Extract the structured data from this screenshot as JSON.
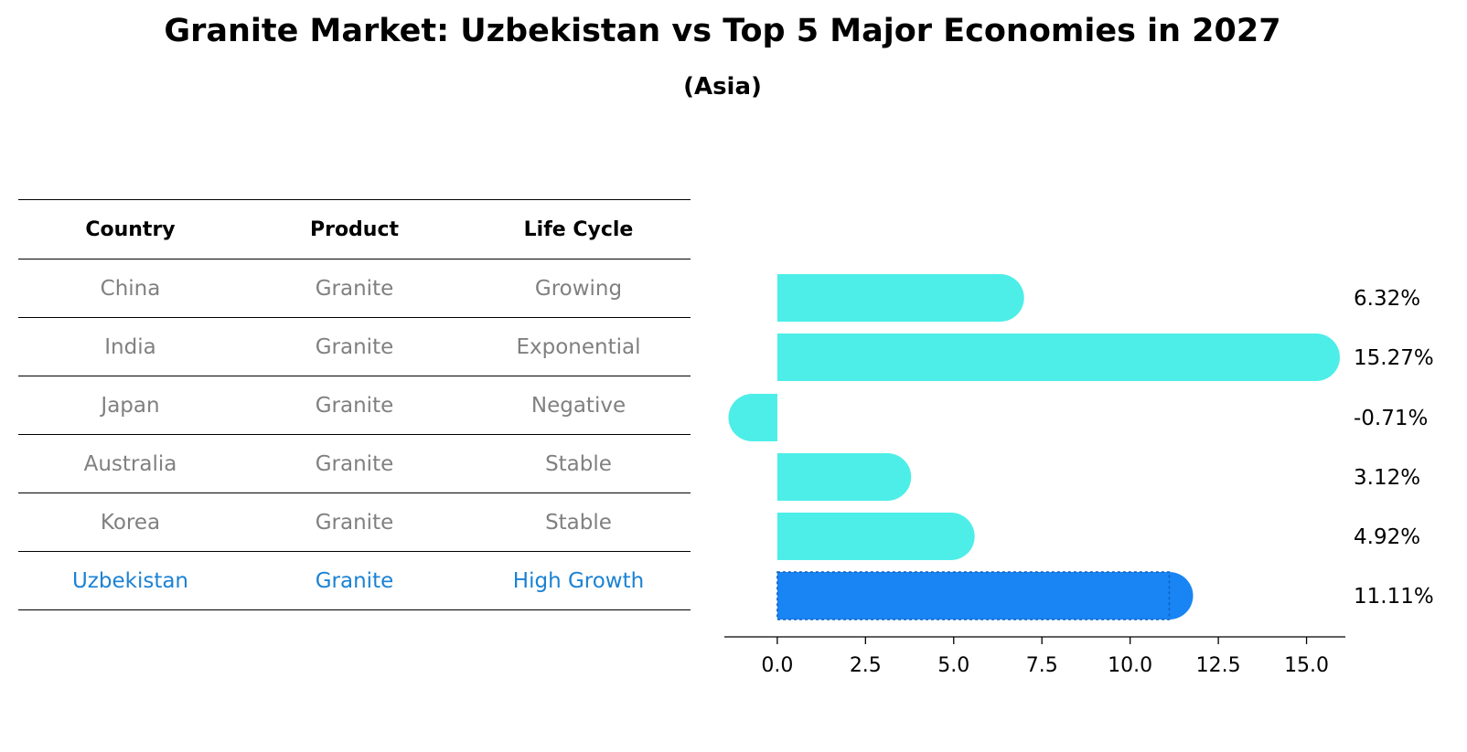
{
  "title": "Granite Market: Uzbekistan vs Top 5 Major Economies in 2027",
  "subtitle": "(Asia)",
  "table": {
    "headers": [
      "Country",
      "Product",
      "Life Cycle"
    ],
    "rows": [
      [
        "China",
        "Granite",
        "Growing"
      ],
      [
        "India",
        "Granite",
        "Exponential"
      ],
      [
        "Japan",
        "Granite",
        "Negative"
      ],
      [
        "Australia",
        "Granite",
        "Stable"
      ],
      [
        "Korea",
        "Granite",
        "Stable"
      ],
      [
        "Uzbekistan",
        "Granite",
        "High Growth"
      ]
    ],
    "highlight_row": 5,
    "highlight_color": "#1b82d4"
  },
  "chart_data": {
    "type": "bar",
    "orientation": "horizontal",
    "categories": [
      "China",
      "India",
      "Japan",
      "Australia",
      "Korea",
      "Uzbekistan"
    ],
    "values": [
      6.32,
      15.27,
      -0.71,
      3.12,
      4.92,
      11.11
    ],
    "value_labels": [
      "6.32%",
      "15.27%",
      "-0.71%",
      "3.12%",
      "4.92%",
      "11.11%"
    ],
    "xlim": [
      -1.5,
      16.1
    ],
    "xticks": [
      "0.0",
      "2.5",
      "5.0",
      "7.5",
      "10.0",
      "12.5",
      "15.0"
    ],
    "colors": {
      "default": "#4deee8",
      "highlight": "#1985f5"
    },
    "highlight_index": 5,
    "grid": false,
    "rounded_ends": true
  }
}
